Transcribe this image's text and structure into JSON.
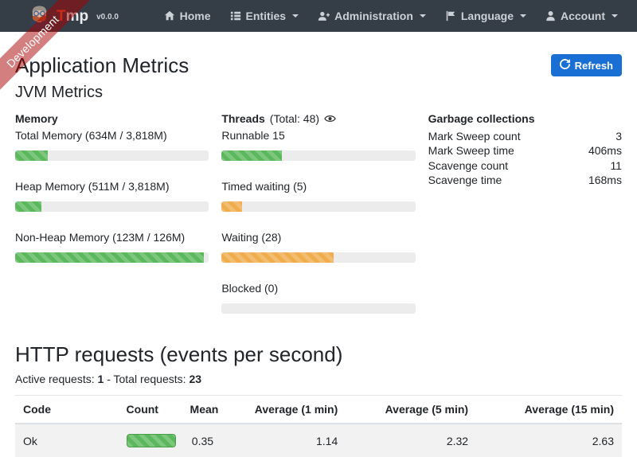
{
  "ribbon": {
    "label": "Development"
  },
  "navbar": {
    "brand": {
      "name": "Tmp",
      "version": "v0.0.0"
    },
    "items": [
      {
        "label": "Home"
      },
      {
        "label": "Entities"
      },
      {
        "label": "Administration"
      },
      {
        "label": "Language"
      },
      {
        "label": "Account"
      }
    ]
  },
  "header": {
    "title": "Application Metrics",
    "refresh_label": "Refresh"
  },
  "jvm": {
    "title": "JVM Metrics",
    "memory": {
      "title": "Memory",
      "bars": [
        {
          "label": "Total Memory (634M / 3,818M)",
          "percent": 17
        },
        {
          "label": "Heap Memory (511M / 3,818M)",
          "percent": 13.4
        },
        {
          "label": "Non-Heap Memory (123M / 126M)",
          "percent": 97.6
        }
      ]
    },
    "threads": {
      "title": "Threads",
      "total_label": "(Total: 48)",
      "bars": [
        {
          "label": "Runnable 15",
          "percent": 31
        },
        {
          "label": "Timed waiting (5)",
          "percent": 10.4
        },
        {
          "label": "Waiting (28)",
          "percent": 58
        },
        {
          "label": "Blocked (0)",
          "percent": 0
        }
      ]
    },
    "gc": {
      "title": "Garbage collections",
      "rows": [
        {
          "label": "Mark Sweep count",
          "value": "3"
        },
        {
          "label": "Mark Sweep time",
          "value": "406ms"
        },
        {
          "label": "Scavenge count",
          "value": "11"
        },
        {
          "label": "Scavenge time",
          "value": "168ms"
        }
      ]
    }
  },
  "http": {
    "title": "HTTP requests (events per second)",
    "active_label": "Active requests:",
    "active_value": "1",
    "total_label": "- Total requests:",
    "total_value": "23",
    "table": {
      "headers": [
        "Code",
        "Count",
        "Mean",
        "Average (1 min)",
        "Average (5 min)",
        "Average (15 min)"
      ],
      "rows": [
        {
          "code": "Ok",
          "count_percent": 100,
          "mean": "0.35",
          "avg1": "1.14",
          "avg5": "2.32",
          "avg15": "2.63"
        }
      ]
    }
  },
  "colors": {
    "green": "#5cb85c",
    "orange": "#f0ad4e",
    "navbar": "#353d47",
    "primary": "#1a6fd4",
    "ribbon": "rgba(170,0,0,0.5)"
  }
}
